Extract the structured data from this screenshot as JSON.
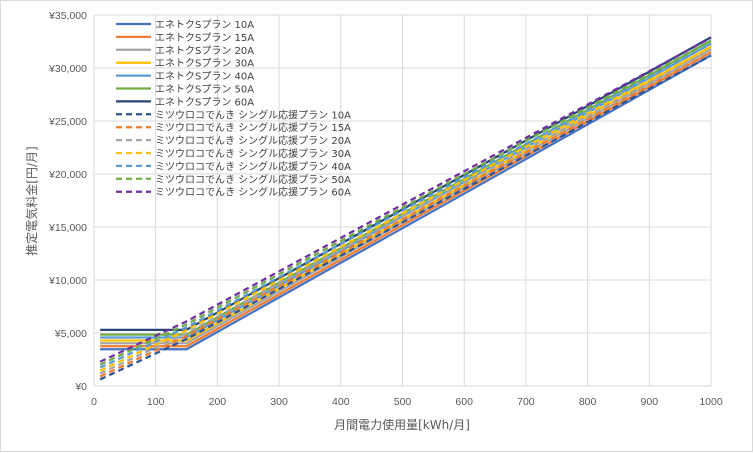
{
  "chart_data": {
    "type": "line",
    "xlabel": "月間電力使用量[kWh/月]",
    "ylabel": "推定電気料金[円/月]",
    "xlim": [
      0,
      1000
    ],
    "ylim": [
      0,
      35000
    ],
    "x_ticks": [
      "0",
      "100",
      "200",
      "300",
      "400",
      "500",
      "600",
      "700",
      "800",
      "900",
      "1000"
    ],
    "y_ticks": [
      "¥0",
      "¥5,000",
      "¥10,000",
      "¥15,000",
      "¥20,000",
      "¥25,000",
      "¥30,000",
      "¥35,000"
    ],
    "grid": "vertical and horizontal",
    "legend_position": "top-left (inside plot)",
    "x": [
      10,
      150,
      1000
    ],
    "series": [
      {
        "name": "エネトクSプラン 10A",
        "color": "#4472C4",
        "dash": "solid",
        "values": [
          3470,
          3470,
          31200
        ]
      },
      {
        "name": "エネトクSプラン 15A",
        "color": "#ED7D31",
        "dash": "solid",
        "values": [
          3750,
          3750,
          31480
        ]
      },
      {
        "name": "エネトクSプラン 20A",
        "color": "#A5A5A5",
        "dash": "solid",
        "values": [
          4030,
          4030,
          31760
        ]
      },
      {
        "name": "エネトクSプラン 30A",
        "color": "#FFC000",
        "dash": "solid",
        "values": [
          4290,
          4290,
          32020
        ]
      },
      {
        "name": "エネトクSプラン 40A",
        "color": "#5B9BD5",
        "dash": "solid",
        "values": [
          4580,
          4580,
          32310
        ]
      },
      {
        "name": "エネトクSプラン 50A",
        "color": "#70AD47",
        "dash": "solid",
        "values": [
          4850,
          4850,
          32580
        ]
      },
      {
        "name": "エネトクSプラン 60A",
        "color": "#264478",
        "dash": "solid",
        "values": [
          5300,
          5300,
          32900
        ]
      },
      {
        "name": "ミツウロコでんき シングル応援プラン 10A",
        "color": "#2F5597",
        "dash": "dashed",
        "values": [
          620,
          4430,
          31180
        ]
      },
      {
        "name": "ミツウロコでんき シングル応援プラン 15A",
        "color": "#ED7D31",
        "dash": "dashed",
        "values": [
          900,
          4710,
          31460
        ]
      },
      {
        "name": "ミツウロコでんき シングル応援プラン 20A",
        "color": "#A5A5A5",
        "dash": "dashed",
        "values": [
          1180,
          4990,
          31740
        ]
      },
      {
        "name": "ミツウロコでんき シングル応援プラン 30A",
        "color": "#FFC000",
        "dash": "dashed",
        "values": [
          1450,
          5260,
          32010
        ]
      },
      {
        "name": "ミツウロコでんき シングル応援プラン 40A",
        "color": "#5B9BD5",
        "dash": "dashed",
        "values": [
          1730,
          5540,
          32290
        ]
      },
      {
        "name": "ミツウロコでんき シングル応援プラン 50A",
        "color": "#70AD47",
        "dash": "dashed",
        "values": [
          2010,
          5820,
          32570
        ]
      },
      {
        "name": "ミツウロコでんき シングル応援プラン 60A",
        "color": "#7030A0",
        "dash": "dashed",
        "values": [
          2290,
          6100,
          32850
        ]
      }
    ]
  }
}
